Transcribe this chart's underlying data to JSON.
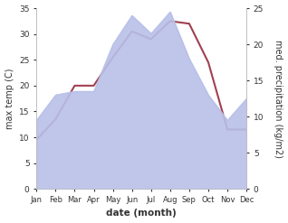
{
  "months": [
    "Jan",
    "Feb",
    "Mar",
    "Apr",
    "May",
    "Jun",
    "Jul",
    "Aug",
    "Sep",
    "Oct",
    "Nov",
    "Dec"
  ],
  "temperature": [
    9.5,
    13.5,
    20.0,
    20.0,
    25.5,
    30.5,
    29.0,
    32.5,
    32.0,
    24.5,
    11.5,
    11.5
  ],
  "precipitation": [
    9.5,
    13.0,
    13.5,
    13.5,
    20.0,
    24.0,
    21.5,
    24.5,
    18.0,
    13.0,
    9.5,
    12.5
  ],
  "temp_color": "#a04050",
  "precip_color_fill": "#b8c0e8",
  "precip_color_edge": "#9090bb",
  "temp_ylim": [
    0,
    35
  ],
  "precip_ylim": [
    0,
    25
  ],
  "temp_yticks": [
    0,
    5,
    10,
    15,
    20,
    25,
    30,
    35
  ],
  "precip_yticks": [
    0,
    5,
    10,
    15,
    20,
    25
  ],
  "xlabel": "date (month)",
  "ylabel_left": "max temp (C)",
  "ylabel_right": "med. precipitation (kg/m2)",
  "bg_color": "#ffffff",
  "line_width": 1.5
}
